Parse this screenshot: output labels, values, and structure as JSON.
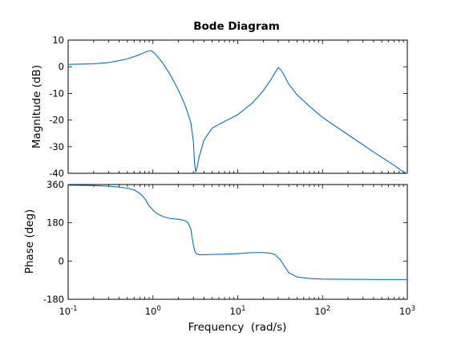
{
  "colors": {
    "line": "#0072bd",
    "axes": "#000000",
    "background": "#ffffff"
  },
  "chart_data": {
    "type": "line",
    "title": "Bode Diagram",
    "xlabel": "Frequency  (rad/s)",
    "xscale": "log",
    "xlim": [
      0.1,
      1000
    ],
    "grid": false,
    "legend": "none",
    "x_ticks": [
      0.1,
      1,
      10,
      100,
      1000
    ],
    "x_tick_labels": [
      {
        "base": "10",
        "exp": "-1"
      },
      {
        "base": "10",
        "exp": "0"
      },
      {
        "base": "10",
        "exp": "1"
      },
      {
        "base": "10",
        "exp": "2"
      },
      {
        "base": "10",
        "exp": "3"
      }
    ],
    "magnitude": {
      "ylabel": "Magnitude (dB)",
      "ylim": [
        -40,
        10
      ],
      "y_ticks": [
        10,
        0,
        -10,
        -20,
        -30,
        -40
      ],
      "y_tick_labels": [
        "10",
        "0",
        "-10",
        "-20",
        "-30",
        "-40"
      ],
      "x": [
        0.1,
        0.2,
        0.3,
        0.4,
        0.5,
        0.6,
        0.7,
        0.8,
        0.9,
        0.95,
        1.0,
        1.1,
        1.3,
        1.6,
        2.0,
        2.4,
        2.8,
        3.0,
        3.1,
        3.2,
        3.3,
        3.5,
        4.0,
        5.0,
        7.0,
        10,
        15,
        20,
        25,
        28,
        30,
        32,
        35,
        40,
        50,
        70,
        100,
        200,
        400,
        700,
        900,
        1000
      ],
      "y": [
        0.9,
        1.1,
        1.6,
        2.3,
        3.0,
        3.8,
        4.6,
        5.4,
        6.0,
        6.0,
        5.6,
        4.3,
        1.5,
        -3.0,
        -8.8,
        -14.5,
        -21.0,
        -28.0,
        -36.5,
        -39.5,
        -38.0,
        -34.0,
        -27.5,
        -23.0,
        -20.5,
        -18.0,
        -13.5,
        -9.0,
        -4.5,
        -1.8,
        -0.3,
        -1.0,
        -3.0,
        -6.5,
        -10.5,
        -14.8,
        -19.0,
        -25.5,
        -32.0,
        -37.0,
        -39.5,
        -40.0
      ]
    },
    "phase": {
      "ylabel": "Phase (deg)",
      "ylim": [
        -180,
        360
      ],
      "y_ticks": [
        360,
        180,
        0,
        -180
      ],
      "y_tick_labels": [
        "360",
        "180",
        "0",
        "-180"
      ],
      "x": [
        0.1,
        0.2,
        0.3,
        0.4,
        0.5,
        0.6,
        0.7,
        0.8,
        0.9,
        1.0,
        1.1,
        1.3,
        1.6,
        2.0,
        2.4,
        2.6,
        2.8,
        2.9,
        3.0,
        3.1,
        3.2,
        3.3,
        3.5,
        4.0,
        5.0,
        7.0,
        10,
        15,
        20,
        25,
        28,
        30,
        32,
        35,
        40,
        50,
        70,
        100,
        200,
        500,
        1000
      ],
      "y": [
        357,
        355,
        352,
        348,
        343,
        335,
        318,
        295,
        260,
        240,
        225,
        210,
        200,
        197,
        190,
        180,
        150,
        110,
        75,
        50,
        38,
        33,
        30,
        30,
        31,
        32,
        35,
        40,
        40,
        36,
        28,
        15,
        5,
        -20,
        -55,
        -75,
        -82,
        -85,
        -86,
        -87,
        -87
      ]
    }
  }
}
